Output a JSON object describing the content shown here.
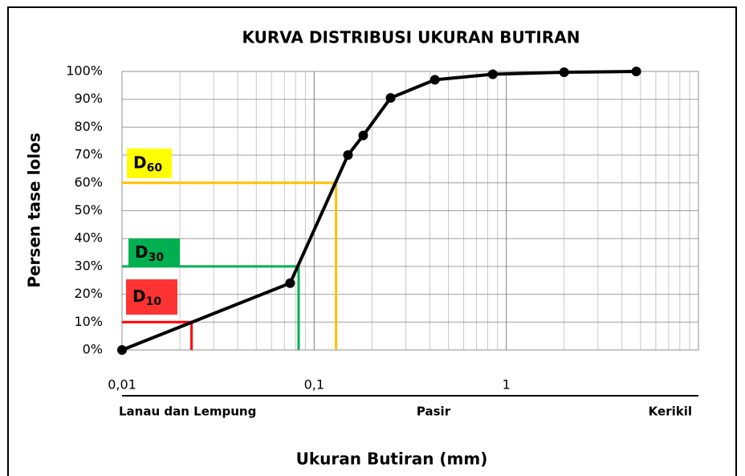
{
  "chart_data": {
    "type": "line",
    "title": "KURVA DISTRIBUSI UKURAN BUTIRAN",
    "x_label": "Ukuran Butiran (mm)",
    "y_label": "Persen tase  lolos",
    "x_log": true,
    "grid": true,
    "minor_grid": true,
    "xlim": [
      0.01,
      10
    ],
    "ylim": [
      0,
      100
    ],
    "xticks": [
      {
        "value": 0.01,
        "label": "0,01"
      },
      {
        "value": 0.1,
        "label": "0,1"
      },
      {
        "value": 1,
        "label": "1"
      }
    ],
    "yticks": [
      {
        "value": 0,
        "label": "0%"
      },
      {
        "value": 10,
        "label": "10%"
      },
      {
        "value": 20,
        "label": "20%"
      },
      {
        "value": 30,
        "label": "30%"
      },
      {
        "value": 40,
        "label": "40%"
      },
      {
        "value": 50,
        "label": "50%"
      },
      {
        "value": 60,
        "label": "60%"
      },
      {
        "value": 70,
        "label": "70%"
      },
      {
        "value": 80,
        "label": "80%"
      },
      {
        "value": 90,
        "label": "90%"
      },
      {
        "value": 100,
        "label": "100%"
      }
    ],
    "series": [
      {
        "color": "#000000",
        "x": [
          0.01,
          0.075,
          0.15,
          0.18,
          0.25,
          0.425,
          0.85,
          2,
          4.75
        ],
        "values": [
          0,
          24,
          70,
          77,
          90.5,
          97,
          99,
          99.7,
          100
        ]
      }
    ],
    "reference_lines": [
      {
        "label": "D",
        "subscript": "60",
        "x": 0.13,
        "y": 60,
        "color": "#ffc000",
        "box_color": "#ffff00"
      },
      {
        "label": "D",
        "subscript": "30",
        "x": 0.083,
        "y": 30,
        "color": "#00b050",
        "box_color": "#00b050"
      },
      {
        "label": "D",
        "subscript": "10",
        "x": 0.023,
        "y": 10,
        "color": "#ff0000",
        "box_color": "#ff3333"
      }
    ],
    "soil_labels": [
      "Lanau dan Lempung",
      "Pasir",
      "Kerikil"
    ]
  }
}
